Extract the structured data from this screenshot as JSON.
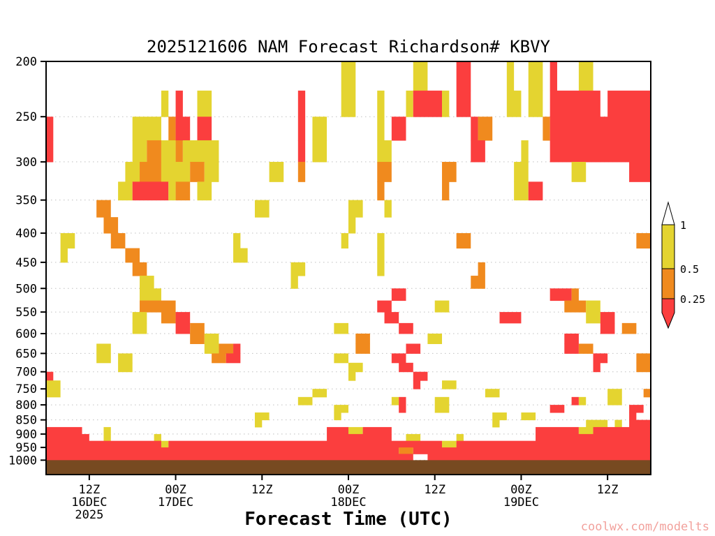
{
  "header": {
    "title": "2025121606 NAM Forecast Richardson# KBVY"
  },
  "footer": {
    "xlabel": "Forecast Time (UTC)",
    "watermark": "coolwx.com/modelts"
  },
  "chart_data": {
    "type": "heatmap",
    "title": "2025121606 NAM Forecast Richardson# KBVY",
    "model": "NAM",
    "run": "2025121606",
    "parameter": "Richardson#",
    "station": "KBVY",
    "xlabel": "Forecast Time (UTC)",
    "x_hours_range": [
      0,
      84
    ],
    "x_ticks": [
      {
        "hour": 6,
        "label": "12Z"
      },
      {
        "hour": 18,
        "label": "00Z"
      },
      {
        "hour": 30,
        "label": "12Z"
      },
      {
        "hour": 42,
        "label": "00Z"
      },
      {
        "hour": 54,
        "label": "12Z"
      },
      {
        "hour": 66,
        "label": "00Z"
      },
      {
        "hour": 78,
        "label": "12Z"
      }
    ],
    "x_date_labels": [
      {
        "hour": 6,
        "lines": [
          "16DEC",
          "2025"
        ]
      },
      {
        "hour": 18,
        "lines": [
          "17DEC"
        ]
      },
      {
        "hour": 42,
        "lines": [
          "18DEC"
        ]
      },
      {
        "hour": 66,
        "lines": [
          "19DEC"
        ]
      }
    ],
    "y_axis": {
      "scale": "log-pressure",
      "unit": "hPa",
      "top": 200,
      "bottom": 1060,
      "ticks": [
        200,
        250,
        300,
        350,
        400,
        450,
        500,
        550,
        600,
        650,
        700,
        750,
        800,
        850,
        900,
        950,
        1000
      ]
    },
    "colorbar": {
      "labels": [
        "1",
        "0.5",
        "0.25"
      ],
      "bands": [
        {
          "key": "W",
          "color": "#ffffff",
          "range": "> 1"
        },
        {
          "key": "Y",
          "color": "#e4d430",
          "range": "0.5 - 1"
        },
        {
          "key": "O",
          "color": "#f08a1e",
          "range": "0.25 - 0.5"
        },
        {
          "key": "R",
          "color": "#fb3e3e",
          "range": "< 0.25"
        }
      ]
    },
    "colors": {
      "Y": "#e4d430",
      "O": "#f08a1e",
      "R": "#fb3e3e"
    },
    "grid_on": true,
    "gridline_color": "#bfbfbf",
    "ground_color": "#774a21",
    "ground_top_hpa": 1000,
    "levels": [
      200,
      225,
      250,
      275,
      300,
      325,
      350,
      375,
      400,
      425,
      450,
      475,
      500,
      525,
      550,
      575,
      600,
      625,
      650,
      675,
      700,
      725,
      750,
      775,
      800,
      825,
      850,
      875,
      900,
      925,
      950,
      975,
      1000
    ],
    "rows": [
      [
        [
          41,
          43,
          "Y"
        ],
        [
          51,
          53,
          "Y"
        ],
        [
          57,
          59,
          "R"
        ],
        [
          64,
          65,
          "Y"
        ],
        [
          67,
          69,
          "Y"
        ],
        [
          70,
          71,
          "R"
        ],
        [
          74,
          76,
          "Y"
        ]
      ],
      [
        [
          16,
          17,
          "Y"
        ],
        [
          18,
          19,
          "R"
        ],
        [
          21,
          23,
          "Y"
        ],
        [
          35,
          36,
          "R"
        ],
        [
          41,
          43,
          "Y"
        ],
        [
          46,
          47,
          "Y"
        ],
        [
          50,
          51,
          "Y"
        ],
        [
          51,
          55,
          "R"
        ],
        [
          55,
          56,
          "Y"
        ],
        [
          57,
          59,
          "R"
        ],
        [
          64,
          66,
          "Y"
        ],
        [
          67,
          69,
          "Y"
        ],
        [
          70,
          77,
          "R"
        ],
        [
          78,
          84,
          "R"
        ]
      ],
      [
        [
          0,
          1,
          "R"
        ],
        [
          12,
          16,
          "Y"
        ],
        [
          17,
          18,
          "O"
        ],
        [
          18,
          20,
          "R"
        ],
        [
          21,
          23,
          "R"
        ],
        [
          35,
          36,
          "R"
        ],
        [
          37,
          39,
          "Y"
        ],
        [
          46,
          47,
          "Y"
        ],
        [
          48,
          50,
          "R"
        ],
        [
          59,
          60,
          "R"
        ],
        [
          60,
          62,
          "O"
        ],
        [
          69,
          70,
          "O"
        ],
        [
          70,
          84,
          "R"
        ]
      ],
      [
        [
          0,
          1,
          "R"
        ],
        [
          12,
          14,
          "Y"
        ],
        [
          14,
          16,
          "O"
        ],
        [
          16,
          18,
          "Y"
        ],
        [
          18,
          19,
          "O"
        ],
        [
          19,
          24,
          "Y"
        ],
        [
          35,
          36,
          "R"
        ],
        [
          37,
          39,
          "Y"
        ],
        [
          46,
          48,
          "Y"
        ],
        [
          59,
          61,
          "R"
        ],
        [
          66,
          67,
          "Y"
        ],
        [
          70,
          84,
          "R"
        ]
      ],
      [
        [
          11,
          13,
          "Y"
        ],
        [
          13,
          16,
          "O"
        ],
        [
          16,
          20,
          "Y"
        ],
        [
          20,
          22,
          "O"
        ],
        [
          22,
          24,
          "Y"
        ],
        [
          31,
          33,
          "Y"
        ],
        [
          35,
          36,
          "O"
        ],
        [
          46,
          48,
          "O"
        ],
        [
          55,
          57,
          "O"
        ],
        [
          65,
          67,
          "Y"
        ],
        [
          73,
          75,
          "Y"
        ],
        [
          81,
          84,
          "R"
        ]
      ],
      [
        [
          10,
          12,
          "Y"
        ],
        [
          12,
          17,
          "R"
        ],
        [
          17,
          18,
          "Y"
        ],
        [
          18,
          20,
          "O"
        ],
        [
          21,
          23,
          "Y"
        ],
        [
          46,
          47,
          "O"
        ],
        [
          55,
          56,
          "O"
        ],
        [
          65,
          67,
          "Y"
        ],
        [
          67,
          69,
          "R"
        ]
      ],
      [
        [
          7,
          9,
          "O"
        ],
        [
          29,
          31,
          "Y"
        ],
        [
          42,
          44,
          "Y"
        ],
        [
          47,
          48,
          "Y"
        ]
      ],
      [
        [
          8,
          10,
          "O"
        ],
        [
          42,
          43,
          "Y"
        ]
      ],
      [
        [
          2,
          4,
          "Y"
        ],
        [
          9,
          11,
          "O"
        ],
        [
          26,
          27,
          "Y"
        ],
        [
          41,
          42,
          "Y"
        ],
        [
          46,
          47,
          "Y"
        ],
        [
          57,
          59,
          "O"
        ],
        [
          82,
          84,
          "O"
        ]
      ],
      [
        [
          2,
          3,
          "Y"
        ],
        [
          11,
          13,
          "O"
        ],
        [
          26,
          28,
          "Y"
        ],
        [
          46,
          47,
          "Y"
        ]
      ],
      [
        [
          12,
          14,
          "O"
        ],
        [
          34,
          36,
          "Y"
        ],
        [
          46,
          47,
          "Y"
        ],
        [
          60,
          61,
          "O"
        ]
      ],
      [
        [
          13,
          15,
          "Y"
        ],
        [
          34,
          35,
          "Y"
        ],
        [
          59,
          61,
          "O"
        ]
      ],
      [
        [
          13,
          16,
          "Y"
        ],
        [
          48,
          50,
          "R"
        ],
        [
          70,
          73,
          "R"
        ],
        [
          73,
          74,
          "O"
        ]
      ],
      [
        [
          13,
          18,
          "O"
        ],
        [
          46,
          48,
          "R"
        ],
        [
          54,
          56,
          "Y"
        ],
        [
          72,
          75,
          "O"
        ],
        [
          75,
          77,
          "Y"
        ]
      ],
      [
        [
          12,
          14,
          "Y"
        ],
        [
          16,
          18,
          "O"
        ],
        [
          18,
          20,
          "R"
        ],
        [
          47,
          49,
          "R"
        ],
        [
          63,
          66,
          "R"
        ],
        [
          75,
          77,
          "Y"
        ],
        [
          77,
          79,
          "R"
        ]
      ],
      [
        [
          12,
          14,
          "Y"
        ],
        [
          18,
          20,
          "R"
        ],
        [
          20,
          22,
          "O"
        ],
        [
          40,
          42,
          "Y"
        ],
        [
          49,
          51,
          "R"
        ],
        [
          77,
          79,
          "R"
        ],
        [
          80,
          82,
          "O"
        ]
      ],
      [
        [
          20,
          22,
          "O"
        ],
        [
          22,
          24,
          "Y"
        ],
        [
          43,
          45,
          "O"
        ],
        [
          53,
          55,
          "Y"
        ],
        [
          72,
          74,
          "R"
        ]
      ],
      [
        [
          7,
          9,
          "Y"
        ],
        [
          22,
          24,
          "Y"
        ],
        [
          24,
          26,
          "O"
        ],
        [
          26,
          27,
          "R"
        ],
        [
          43,
          45,
          "O"
        ],
        [
          50,
          52,
          "R"
        ],
        [
          72,
          74,
          "R"
        ],
        [
          74,
          76,
          "O"
        ]
      ],
      [
        [
          7,
          9,
          "Y"
        ],
        [
          10,
          12,
          "Y"
        ],
        [
          23,
          25,
          "O"
        ],
        [
          25,
          27,
          "R"
        ],
        [
          40,
          42,
          "Y"
        ],
        [
          48,
          50,
          "R"
        ],
        [
          76,
          78,
          "R"
        ],
        [
          82,
          84,
          "O"
        ]
      ],
      [
        [
          10,
          12,
          "Y"
        ],
        [
          42,
          44,
          "Y"
        ],
        [
          49,
          51,
          "R"
        ],
        [
          76,
          77,
          "R"
        ],
        [
          82,
          84,
          "O"
        ]
      ],
      [
        [
          0,
          1,
          "R"
        ],
        [
          42,
          43,
          "Y"
        ],
        [
          51,
          53,
          "R"
        ]
      ],
      [
        [
          0,
          2,
          "Y"
        ],
        [
          51,
          52,
          "R"
        ],
        [
          55,
          57,
          "Y"
        ]
      ],
      [
        [
          0,
          2,
          "Y"
        ],
        [
          37,
          39,
          "Y"
        ],
        [
          61,
          63,
          "Y"
        ],
        [
          78,
          80,
          "Y"
        ],
        [
          83,
          84,
          "O"
        ]
      ],
      [
        [
          35,
          37,
          "Y"
        ],
        [
          48,
          49,
          "Y"
        ],
        [
          49,
          50,
          "R"
        ],
        [
          54,
          56,
          "Y"
        ],
        [
          73,
          74,
          "R"
        ],
        [
          74,
          75,
          "Y"
        ],
        [
          78,
          80,
          "Y"
        ]
      ],
      [
        [
          40,
          42,
          "Y"
        ],
        [
          49,
          50,
          "R"
        ],
        [
          54,
          56,
          "Y"
        ],
        [
          70,
          72,
          "R"
        ],
        [
          81,
          83,
          "R"
        ]
      ],
      [
        [
          29,
          31,
          "Y"
        ],
        [
          40,
          41,
          "Y"
        ],
        [
          62,
          64,
          "Y"
        ],
        [
          66,
          68,
          "Y"
        ],
        [
          81,
          82,
          "R"
        ]
      ],
      [
        [
          29,
          30,
          "Y"
        ],
        [
          62,
          63,
          "Y"
        ],
        [
          75,
          78,
          "Y"
        ],
        [
          79,
          80,
          "Y"
        ],
        [
          81,
          84,
          "R"
        ]
      ],
      [
        [
          0,
          5,
          "R"
        ],
        [
          8,
          9,
          "Y"
        ],
        [
          39,
          42,
          "R"
        ],
        [
          42,
          44,
          "Y"
        ],
        [
          44,
          48,
          "R"
        ],
        [
          68,
          74,
          "R"
        ],
        [
          74,
          76,
          "Y"
        ],
        [
          76,
          84,
          "R"
        ]
      ],
      [
        [
          0,
          6,
          "R"
        ],
        [
          8,
          9,
          "Y"
        ],
        [
          15,
          16,
          "Y"
        ],
        [
          39,
          48,
          "R"
        ],
        [
          50,
          52,
          "Y"
        ],
        [
          57,
          58,
          "Y"
        ],
        [
          68,
          84,
          "R"
        ]
      ],
      [
        [
          0,
          16,
          "R"
        ],
        [
          16,
          17,
          "Y"
        ],
        [
          17,
          55,
          "R"
        ],
        [
          55,
          57,
          "Y"
        ],
        [
          57,
          84,
          "R"
        ]
      ],
      [
        [
          0,
          49,
          "R"
        ],
        [
          49,
          51,
          "O"
        ],
        [
          51,
          84,
          "R"
        ]
      ],
      [
        [
          0,
          51,
          "R"
        ],
        [
          53,
          84,
          "R"
        ]
      ]
    ]
  }
}
